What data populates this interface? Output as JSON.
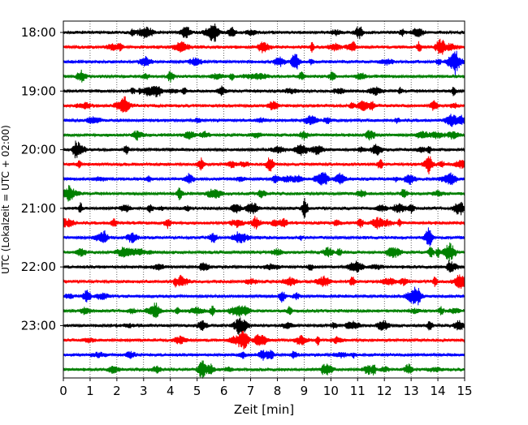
{
  "chart_data": {
    "type": "line",
    "title": "",
    "xlabel": "Zeit  [min]",
    "ylabel": "UTC (Lokalzeit = UTC + 02:00)",
    "xlim": [
      0,
      15
    ],
    "x_ticks": [
      "0",
      "1",
      "2",
      "3",
      "4",
      "5",
      "6",
      "7",
      "8",
      "9",
      "10",
      "11",
      "12",
      "13",
      "14",
      "15"
    ],
    "y_ticks": [
      "18:00",
      "19:00",
      "20:00",
      "21:00",
      "22:00",
      "23:00"
    ],
    "grid": "vertical dotted",
    "trace_colors": [
      "#000000",
      "#ff0000",
      "#0000ff",
      "#008000"
    ],
    "traces": [
      {
        "start": "18:00"
      },
      {
        "start": "18:15"
      },
      {
        "start": "18:30"
      },
      {
        "start": "18:45"
      },
      {
        "start": "19:00"
      },
      {
        "start": "19:15"
      },
      {
        "start": "19:30"
      },
      {
        "start": "19:45"
      },
      {
        "start": "20:00"
      },
      {
        "start": "20:15"
      },
      {
        "start": "20:30"
      },
      {
        "start": "20:45"
      },
      {
        "start": "21:00"
      },
      {
        "start": "21:15"
      },
      {
        "start": "21:30"
      },
      {
        "start": "21:45"
      },
      {
        "start": "22:00"
      },
      {
        "start": "22:15"
      },
      {
        "start": "22:30"
      },
      {
        "start": "22:45"
      },
      {
        "start": "23:00"
      },
      {
        "start": "23:15"
      },
      {
        "start": "23:30"
      },
      {
        "start": "23:45"
      }
    ]
  }
}
